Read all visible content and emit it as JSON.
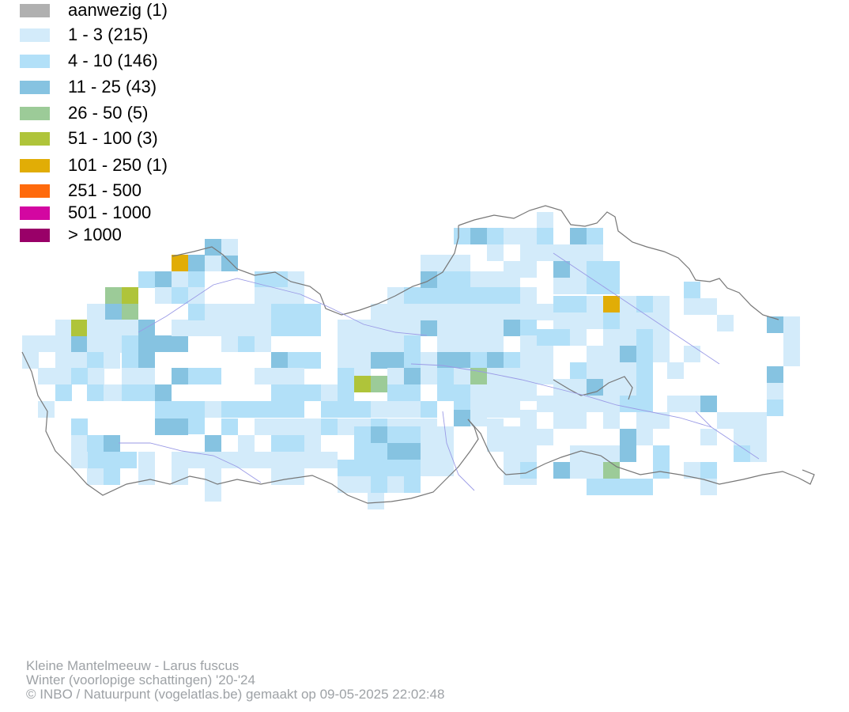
{
  "legend": {
    "items": [
      {
        "label": "aanwezig (1)",
        "color": "#b0b0b0"
      },
      {
        "label": "1 - 3 (215)",
        "color": "#d3ebfa"
      },
      {
        "label": "4 - 10 (146)",
        "color": "#b2e0f8"
      },
      {
        "label": "11 - 25 (43)",
        "color": "#86c3e1"
      },
      {
        "label": "26 - 50 (5)",
        "color": "#9ccb98"
      },
      {
        "label": "51 - 100 (3)",
        "color": "#afc43a"
      },
      {
        "label": "101 - 250 (1)",
        "color": "#e1ad06"
      },
      {
        "label": "251 - 500",
        "color": "#ff6a0c"
      },
      {
        "label": "501 - 1000",
        "color": "#d307a1"
      },
      {
        "label": "> 1000",
        "color": "#990068"
      }
    ]
  },
  "footer": {
    "line1": "Kleine Mantelmeeuw - Larus fuscus",
    "line2": "Winter (voorlopige schattingen) '20-'24",
    "line3": "© INBO / Natuurpunt (vogelatlas.be) gemaakt op 09-05-2025 22:02:48"
  },
  "map": {
    "colors": {
      "border": "#777777",
      "river": "#9a9ae6"
    }
  }
}
